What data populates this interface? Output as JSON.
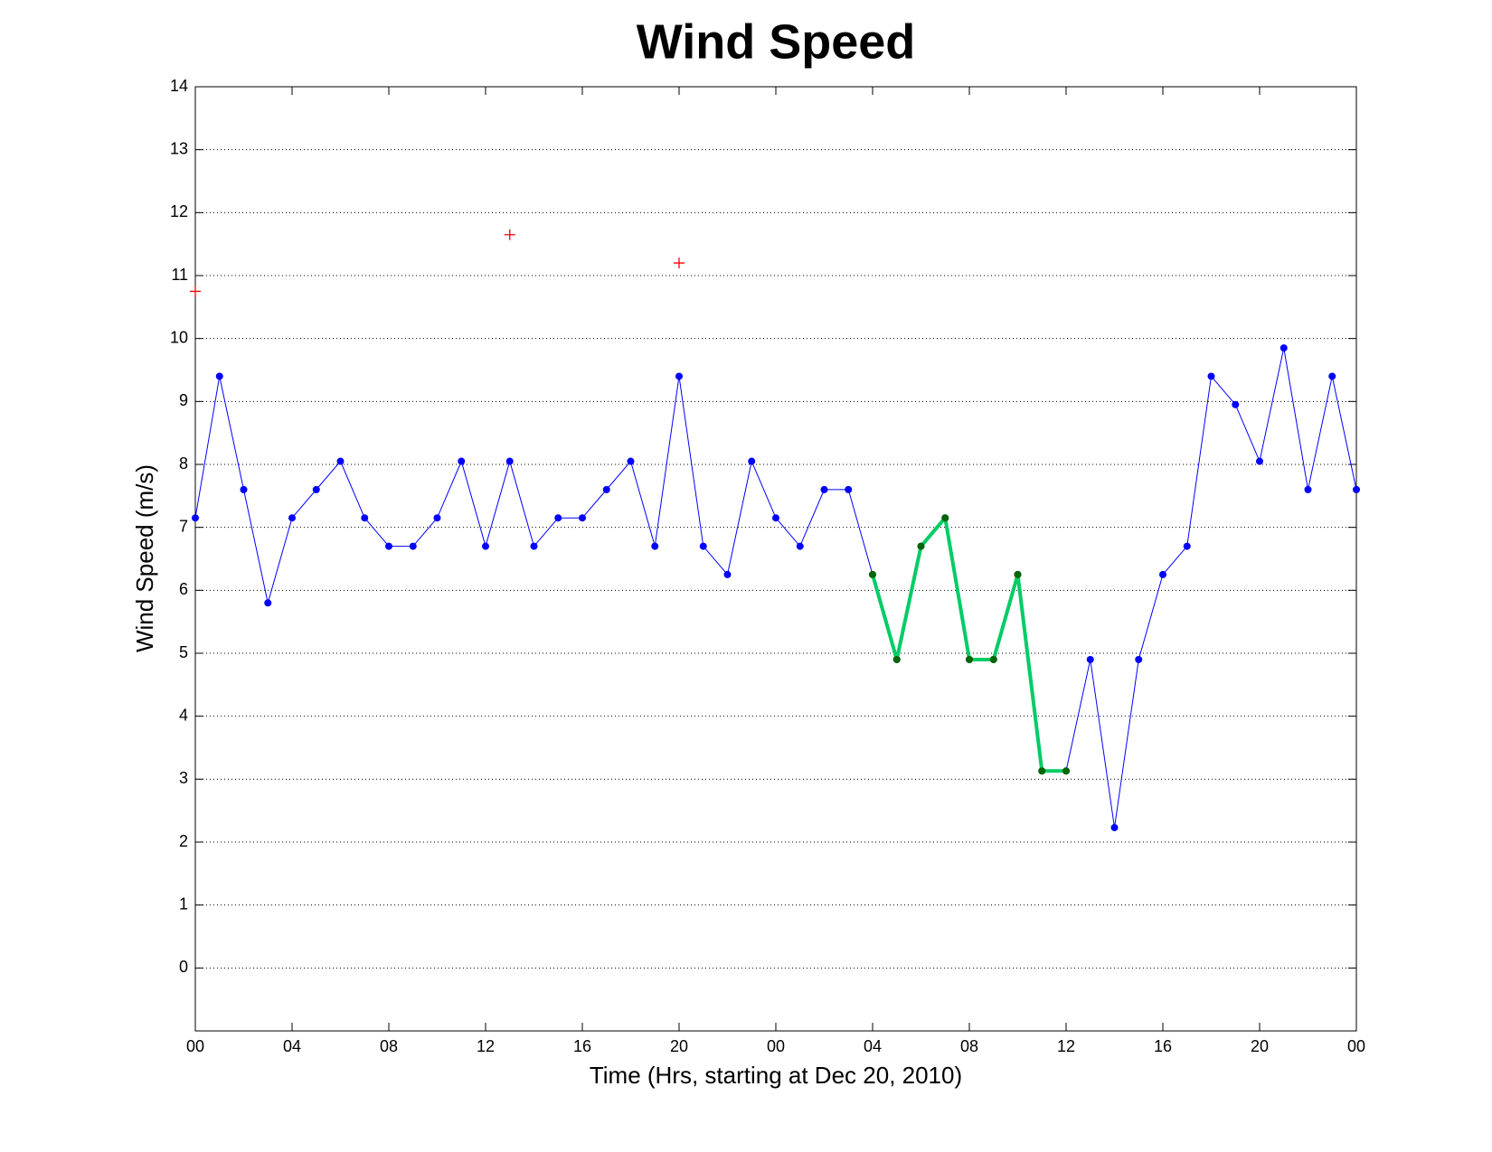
{
  "chart_data": {
    "type": "line",
    "title": "Wind Speed",
    "xlabel": "Time (Hrs, starting at Dec 20, 2010)",
    "ylabel": "Wind Speed (m/s)",
    "x": [
      0,
      1,
      2,
      3,
      4,
      5,
      6,
      7,
      8,
      9,
      10,
      11,
      12,
      13,
      14,
      15,
      16,
      17,
      18,
      19,
      20,
      21,
      22,
      23,
      24,
      25,
      26,
      27,
      28,
      29,
      30,
      31,
      32,
      33,
      34,
      35,
      36,
      37,
      38,
      39,
      40,
      41,
      42,
      43,
      44,
      45,
      46,
      47,
      48
    ],
    "series": [
      {
        "color": "#0000ff",
        "marker_color": "#0000ff",
        "width": 1,
        "mode": "line",
        "values": [
          7.15,
          9.4,
          7.6,
          5.8,
          7.15,
          7.6,
          8.05,
          7.15,
          6.7,
          6.7,
          7.15,
          8.05,
          6.7,
          8.05,
          6.7,
          7.15,
          7.15,
          7.6,
          8.05,
          6.7,
          9.4,
          6.7,
          6.25,
          8.05,
          7.15,
          6.7,
          7.6,
          7.6,
          6.25,
          4.9,
          6.7,
          7.15,
          4.9,
          4.9,
          6.25,
          3.13,
          3.13,
          4.9,
          2.23,
          4.9,
          6.25,
          6.7,
          9.4,
          8.95,
          8.05,
          9.85,
          7.6,
          9.4,
          7.6
        ]
      },
      {
        "color": "#00cc66",
        "marker_color": "#006600",
        "width": 4,
        "mode": "line",
        "values": [
          null,
          null,
          null,
          null,
          null,
          null,
          null,
          null,
          null,
          null,
          null,
          null,
          null,
          null,
          null,
          null,
          null,
          null,
          null,
          null,
          null,
          null,
          null,
          null,
          null,
          null,
          null,
          null,
          6.25,
          4.9,
          6.7,
          7.15,
          4.9,
          4.9,
          6.25,
          3.13,
          3.13,
          null,
          null,
          null,
          null,
          null,
          null,
          null,
          null,
          null,
          null,
          null,
          null
        ]
      },
      {
        "color": "#ff0000",
        "mode": "plus",
        "x": [
          0,
          13,
          20
        ],
        "values": [
          10.75,
          11.65,
          11.2
        ]
      }
    ],
    "xlim": [
      0,
      48
    ],
    "xticks": [
      {
        "value": 0,
        "label": "00"
      },
      {
        "value": 4,
        "label": "04"
      },
      {
        "value": 8,
        "label": "08"
      },
      {
        "value": 12,
        "label": "12"
      },
      {
        "value": 16,
        "label": "16"
      },
      {
        "value": 20,
        "label": "20"
      },
      {
        "value": 24,
        "label": "00"
      },
      {
        "value": 28,
        "label": "04"
      },
      {
        "value": 32,
        "label": "08"
      },
      {
        "value": 36,
        "label": "12"
      },
      {
        "value": 40,
        "label": "16"
      },
      {
        "value": 44,
        "label": "20"
      },
      {
        "value": 48,
        "label": "00"
      }
    ],
    "ylim": [
      -1,
      14
    ],
    "yticks": [
      0,
      1,
      2,
      3,
      4,
      5,
      6,
      7,
      8,
      9,
      10,
      11,
      12,
      13,
      14
    ],
    "grid": "y"
  }
}
